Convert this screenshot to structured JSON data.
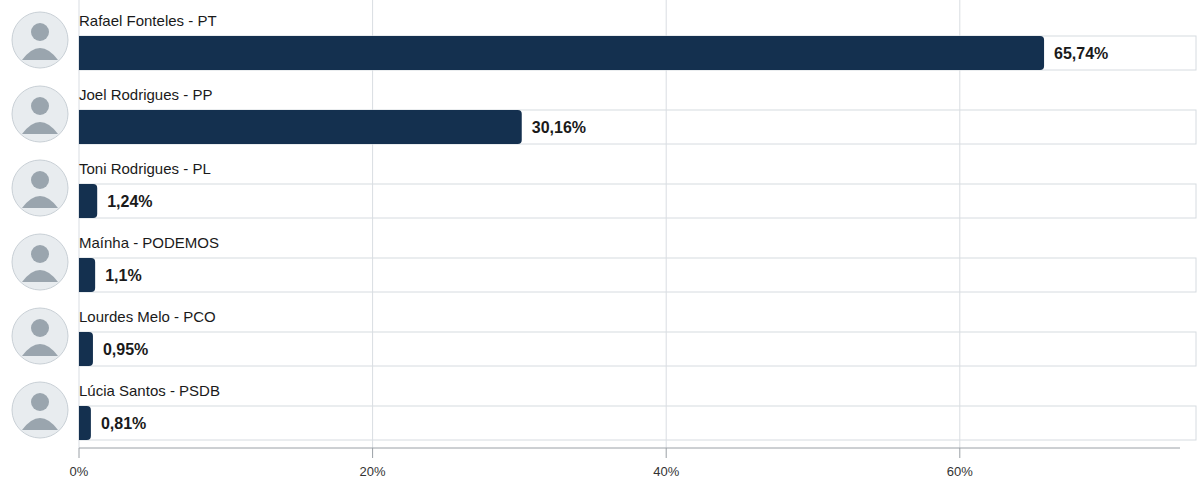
{
  "chart_data": {
    "type": "bar",
    "orientation": "horizontal",
    "categories": [
      "Rafael Fonteles - PT",
      "Joel Rodrigues - PP",
      "Toni Rodrigues - PL",
      "Maínha - PODEMOS",
      "Lourdes Melo - PCO",
      "Lúcia Santos - PSDB"
    ],
    "values": [
      65.74,
      30.16,
      1.24,
      1.1,
      0.95,
      0.81
    ],
    "value_labels": [
      "65,74%",
      "30,16%",
      "1,24%",
      "1,1%",
      "0,95%",
      "0,81%"
    ],
    "color": "#14304f",
    "xlim": [
      0,
      75
    ],
    "xticks": [
      {
        "value": 0,
        "label": "0%"
      },
      {
        "value": 20,
        "label": "20%"
      },
      {
        "value": 40,
        "label": "40%"
      },
      {
        "value": 60,
        "label": "60%"
      }
    ],
    "grid": true,
    "data_labels": true
  }
}
